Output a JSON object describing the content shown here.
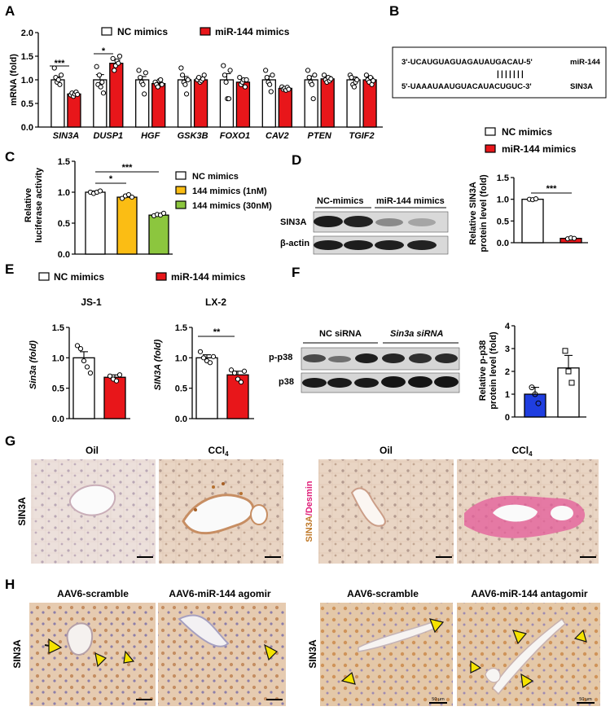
{
  "panels": {
    "A": {
      "letter": "A",
      "legend": [
        "NC mimics",
        "miR-144 mimics"
      ],
      "ylabel": "mRNA (fold)",
      "yticks": [
        "0.0",
        "0.5",
        "1.0",
        "1.5",
        "2.0"
      ],
      "genes": [
        "SIN3A",
        "DUSP1",
        "HGF",
        "GSK3B",
        "FOXO1",
        "CAV2",
        "PTEN",
        "TGIF2"
      ],
      "sig": [
        "***",
        "*"
      ]
    },
    "B": {
      "letter": "B",
      "mir_seq": "3'-UCAUGUAGUAGAUAUGACAU-5'",
      "mir_name": "miR-144",
      "target_seq": "5'-UAAAUAAUGUACAUACUGUC-3'",
      "target_name": "SIN3A",
      "pairs": "|||||||"
    },
    "C": {
      "letter": "C",
      "ylabel": [
        "Relative",
        "luciferase activity"
      ],
      "yticks": [
        "0.0",
        "0.5",
        "1.0",
        "1.5"
      ],
      "legend": [
        "NC mimics",
        "144 mimics (1nM)",
        "144 mimics (30nM)"
      ],
      "sig": [
        "*",
        "***"
      ]
    },
    "D": {
      "letter": "D",
      "legend": [
        "NC mimics",
        "miR-144 mimics"
      ],
      "lane_labels": [
        "NC-mimics",
        "miR-144 mimics"
      ],
      "blot_labels": [
        "SIN3A",
        "β-actin"
      ],
      "ylabel": [
        "Relative SIN3A",
        "protein level (fold)"
      ],
      "yticks": [
        "0.0",
        "0.5",
        "1.0",
        "1.5"
      ],
      "sig": "***"
    },
    "E": {
      "letter": "E",
      "legend": [
        "NC mimics",
        "miR-144 mimics"
      ],
      "titles": [
        "JS-1",
        "LX-2"
      ],
      "ylabels": [
        "Sin3a (fold)",
        "SIN3A (fold)"
      ],
      "yticks": [
        "0.0",
        "0.5",
        "1.0",
        "1.5"
      ],
      "sig": "**"
    },
    "F": {
      "letter": "F",
      "lane_labels": [
        "NC siRNA",
        "Sin3a siRNA"
      ],
      "blot_labels": [
        "p-p38",
        "p38"
      ],
      "ylabel": [
        "Relative p-p38",
        "protein level (fold)"
      ],
      "yticks": [
        "0",
        "1",
        "2",
        "3",
        "4"
      ]
    },
    "G": {
      "letter": "G",
      "titles": [
        "Oil",
        "CCl4",
        "Oil",
        "CCl4"
      ],
      "row_label": "SIN3A",
      "stain_label_a": "SIN3A",
      "stain_label_b": "/Desmin"
    },
    "H": {
      "letter": "H",
      "titles": [
        "AAV6-scramble",
        "AAV6-miR-144 agomir",
        "AAV6-scramble",
        "AAV6-miR-144 antagomir"
      ],
      "row_label": "SIN3A",
      "scale_text": "50 μm"
    }
  },
  "chart_data": [
    {
      "type": "bar",
      "panel": "A",
      "categories": [
        "SIN3A",
        "DUSP1",
        "HGF",
        "GSK3B",
        "FOXO1",
        "CAV2",
        "PTEN",
        "TGIF2"
      ],
      "series": [
        {
          "name": "NC mimics",
          "values": [
            1.0,
            1.0,
            1.0,
            1.0,
            1.0,
            1.0,
            1.0,
            1.0
          ],
          "errors": [
            0.06,
            0.11,
            0.07,
            0.07,
            0.13,
            0.08,
            0.08,
            0.06
          ],
          "color": "#ffffff"
        },
        {
          "name": "miR-144 mimics",
          "values": [
            0.7,
            1.35,
            0.92,
            1.0,
            0.95,
            0.82,
            1.02,
            1.0
          ],
          "errors": [
            0.04,
            0.07,
            0.04,
            0.04,
            0.06,
            0.03,
            0.05,
            0.05
          ],
          "color": "#e8161a"
        }
      ],
      "points": [
        [
          [
            1.25,
            1.05,
            0.95,
            1.0,
            0.9,
            1.1
          ],
          [
            0.68,
            0.72,
            0.65,
            0.7,
            0.74,
            0.69
          ]
        ],
        [
          [
            1.28,
            0.9,
            1.1,
            0.85,
            0.95,
            0.72
          ],
          [
            1.45,
            1.2,
            1.3,
            1.4,
            1.35,
            1.5
          ]
        ],
        [
          [
            1.2,
            1.05,
            0.95,
            0.9,
            0.7,
            1.15
          ],
          [
            0.95,
            0.9,
            0.85,
            0.98,
            1.0,
            0.9
          ]
        ],
        [
          [
            1.25,
            1.1,
            0.95,
            0.9,
            0.7,
            1.0
          ],
          [
            1.0,
            1.05,
            0.95,
            0.98,
            1.02,
            1.1
          ]
        ],
        [
          [
            1.3,
            1.1,
            0.95,
            0.6,
            0.6,
            1.2
          ],
          [
            1.05,
            0.9,
            0.95,
            1.0,
            0.85,
            1.0
          ]
        ],
        [
          [
            1.2,
            1.05,
            0.95,
            0.9,
            0.75,
            1.1
          ],
          [
            0.85,
            0.8,
            0.82,
            0.78,
            0.84,
            0.8
          ]
        ],
        [
          [
            1.2,
            1.05,
            0.95,
            0.9,
            0.6,
            1.1
          ],
          [
            1.1,
            1.0,
            0.95,
            1.05,
            0.98,
            1.02
          ]
        ],
        [
          [
            1.1,
            1.05,
            0.9,
            0.85,
            0.95,
            1.0
          ],
          [
            1.1,
            1.0,
            0.95,
            1.05,
            0.9,
            0.98
          ]
        ]
      ],
      "ylabel": "mRNA (fold)",
      "ylim": [
        0,
        2
      ]
    },
    {
      "type": "bar",
      "panel": "C",
      "categories": [
        "NC mimics",
        "144 mimics (1nM)",
        "144 mimics (30nM)"
      ],
      "values": [
        1.0,
        0.92,
        0.63
      ],
      "errors": [
        0.02,
        0.03,
        0.02
      ],
      "colors": [
        "#ffffff",
        "#fbbd14",
        "#8cc63e"
      ],
      "points": [
        [
          1.0,
          0.98,
          1.0,
          1.02
        ],
        [
          0.9,
          0.94,
          0.96,
          0.92
        ],
        [
          0.62,
          0.64,
          0.63,
          0.66
        ]
      ],
      "ylim": [
        0,
        1.5
      ]
    },
    {
      "type": "bar",
      "panel": "D",
      "categories": [
        "NC mimics",
        "miR-144 mimics"
      ],
      "values": [
        1.0,
        0.1
      ],
      "errors": [
        0.01,
        0.01
      ],
      "colors": [
        "#ffffff",
        "#e8161a"
      ],
      "points": [
        [
          1.0,
          0.99,
          1.01
        ],
        [
          0.09,
          0.11,
          0.1
        ]
      ],
      "ylim": [
        0,
        1.5
      ]
    },
    {
      "type": "bar",
      "panel": "E",
      "title": "JS-1",
      "ylabel": "Sin3a (fold)",
      "categories": [
        "NC mimics",
        "miR-144 mimics"
      ],
      "values": [
        1.0,
        0.68
      ],
      "errors": [
        0.1,
        0.04
      ],
      "colors": [
        "#ffffff",
        "#e8161a"
      ],
      "points": [
        [
          1.2,
          1.15,
          0.95,
          0.85,
          0.75
        ],
        [
          0.7,
          0.65,
          0.62,
          0.72
        ]
      ],
      "ylim": [
        0,
        1.5
      ]
    },
    {
      "type": "bar",
      "panel": "E",
      "title": "LX-2",
      "ylabel": "SIN3A (fold)",
      "categories": [
        "NC mimics",
        "miR-144 mimics"
      ],
      "values": [
        1.0,
        0.72
      ],
      "errors": [
        0.05,
        0.06
      ],
      "colors": [
        "#ffffff",
        "#e8161a"
      ],
      "points": [
        [
          1.1,
          1.0,
          0.95,
          0.92,
          1.02
        ],
        [
          0.8,
          0.75,
          0.65,
          0.6,
          0.78
        ]
      ],
      "ylim": [
        0,
        1.5
      ]
    },
    {
      "type": "bar",
      "panel": "F",
      "categories": [
        "NC siRNA",
        "Sin3a siRNA"
      ],
      "values": [
        1.0,
        2.15
      ],
      "errors": [
        0.3,
        0.55
      ],
      "colors": [
        "#1f3ee0",
        "#ffffff"
      ],
      "points": [
        [
          1.3,
          1.0,
          0.6
        ],
        [
          2.9,
          2.0,
          1.5
        ]
      ],
      "ylim": [
        0,
        4
      ]
    }
  ]
}
